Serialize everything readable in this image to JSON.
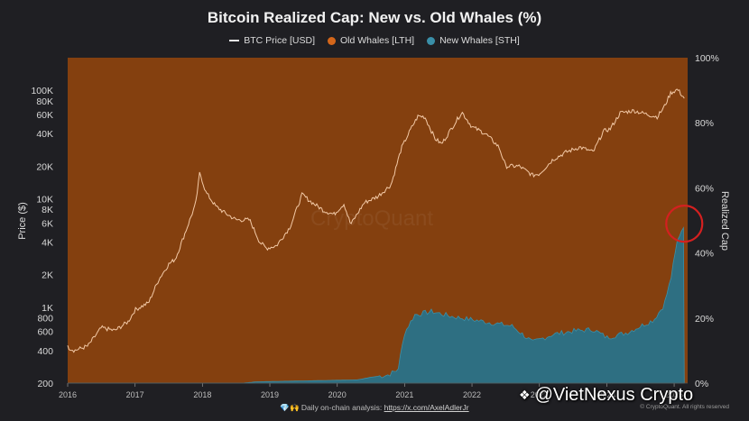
{
  "chart_data": {
    "type": "area",
    "title": "Bitcoin Realized Cap: New vs. Old Whales (%)",
    "legend": [
      {
        "label": "BTC Price [USD]",
        "color": "#e8e8e8",
        "marker": "line"
      },
      {
        "label": "Old Whales [LTH]",
        "color": "#d4661a",
        "marker": "dot"
      },
      {
        "label": "New Whales [STH]",
        "color": "#3a8fa8",
        "marker": "dot"
      }
    ],
    "ylabel_left": "Price ($)",
    "ylabel_right": "Realized Cap",
    "y_left_scale": "log",
    "y_left_range": [
      200,
      200000
    ],
    "y_left_ticks": [
      {
        "value": 200,
        "label": "200"
      },
      {
        "value": 400,
        "label": "400"
      },
      {
        "value": 600,
        "label": "600"
      },
      {
        "value": 800,
        "label": "800"
      },
      {
        "value": 1000,
        "label": "1K"
      },
      {
        "value": 2000,
        "label": "2K"
      },
      {
        "value": 4000,
        "label": "4K"
      },
      {
        "value": 6000,
        "label": "6K"
      },
      {
        "value": 8000,
        "label": "8K"
      },
      {
        "value": 10000,
        "label": "10K"
      },
      {
        "value": 20000,
        "label": "20K"
      },
      {
        "value": 40000,
        "label": "40K"
      },
      {
        "value": 60000,
        "label": "60K"
      },
      {
        "value": 80000,
        "label": "80K"
      },
      {
        "value": 100000,
        "label": "100K"
      }
    ],
    "y_right_range": [
      0,
      100
    ],
    "y_right_ticks": [
      {
        "value": 0,
        "label": "0%"
      },
      {
        "value": 20,
        "label": "20%"
      },
      {
        "value": 40,
        "label": "40%"
      },
      {
        "value": 60,
        "label": "60%"
      },
      {
        "value": 80,
        "label": "80%"
      },
      {
        "value": 100,
        "label": "100%"
      }
    ],
    "x_range": [
      2016.0,
      2025.2
    ],
    "x_ticks": [
      "2016",
      "2017",
      "2018",
      "2019",
      "2020",
      "2021",
      "2022",
      "2023",
      "2024",
      "2025"
    ],
    "series": [
      {
        "name": "BTC Price [USD]",
        "x": [
          2016.0,
          2016.1,
          2016.3,
          2016.5,
          2016.7,
          2016.9,
          2017.0,
          2017.2,
          2017.35,
          2017.5,
          2017.6,
          2017.75,
          2017.9,
          2017.96,
          2018.05,
          2018.2,
          2018.35,
          2018.5,
          2018.7,
          2018.85,
          2018.95,
          2019.1,
          2019.3,
          2019.48,
          2019.6,
          2019.8,
          2019.95,
          2020.1,
          2020.2,
          2020.4,
          2020.6,
          2020.8,
          2020.95,
          2021.1,
          2021.2,
          2021.3,
          2021.45,
          2021.55,
          2021.7,
          2021.85,
          2022.0,
          2022.2,
          2022.4,
          2022.5,
          2022.7,
          2022.9,
          2023.0,
          2023.2,
          2023.4,
          2023.6,
          2023.8,
          2023.95,
          2024.05,
          2024.2,
          2024.4,
          2024.6,
          2024.75,
          2024.85,
          2024.95,
          2025.05,
          2025.15
        ],
        "values": [
          430,
          400,
          440,
          650,
          610,
          740,
          950,
          1100,
          1800,
          2500,
          2800,
          5000,
          9000,
          17500,
          11500,
          8500,
          7300,
          6400,
          6400,
          4000,
          3500,
          3700,
          5500,
          11000,
          9500,
          7800,
          7200,
          9000,
          5800,
          9200,
          10500,
          13500,
          29000,
          45000,
          58000,
          57000,
          36000,
          32000,
          45000,
          63000,
          46000,
          40000,
          30000,
          20000,
          20000,
          16500,
          17000,
          23000,
          27000,
          30000,
          27000,
          42000,
          44000,
          62000,
          65000,
          60000,
          57000,
          70000,
          95000,
          102000,
          85000
        ]
      },
      {
        "name": "New Whales [STH]",
        "x": [
          2016.0,
          2018.6,
          2018.8,
          2020.3,
          2020.5,
          2020.75,
          2020.9,
          2021.0,
          2021.15,
          2021.4,
          2021.7,
          2022.0,
          2022.3,
          2022.6,
          2022.9,
          2023.2,
          2023.5,
          2023.8,
          2024.0,
          2024.3,
          2024.5,
          2024.7,
          2024.85,
          2024.95,
          2025.05,
          2025.15
        ],
        "values": [
          0,
          0,
          0.4,
          1.0,
          1.8,
          2.5,
          4.0,
          15.5,
          21.0,
          22.0,
          20.5,
          19.5,
          18.5,
          17.5,
          12.5,
          15.0,
          16.0,
          16.5,
          14.0,
          15.5,
          17.5,
          19.5,
          24.0,
          32.0,
          44.0,
          49.0
        ]
      },
      {
        "name": "Old Whales [LTH]",
        "values_note": "complement of New Whales (100% - STH)"
      }
    ],
    "annotations": [
      {
        "type": "circle",
        "x": 2025.15,
        "y_right": 49,
        "color": "#d42020"
      }
    ],
    "watermark": "CryptoQuant"
  },
  "footer": {
    "icons": "💎🙌",
    "text": "Daily on-chain analysis:",
    "link": "https://x.com/AxelAdlerJr",
    "copyright": "© CryptoQuant. All rights reserved"
  },
  "overlay": {
    "text": "@VietNexus Crypto"
  }
}
